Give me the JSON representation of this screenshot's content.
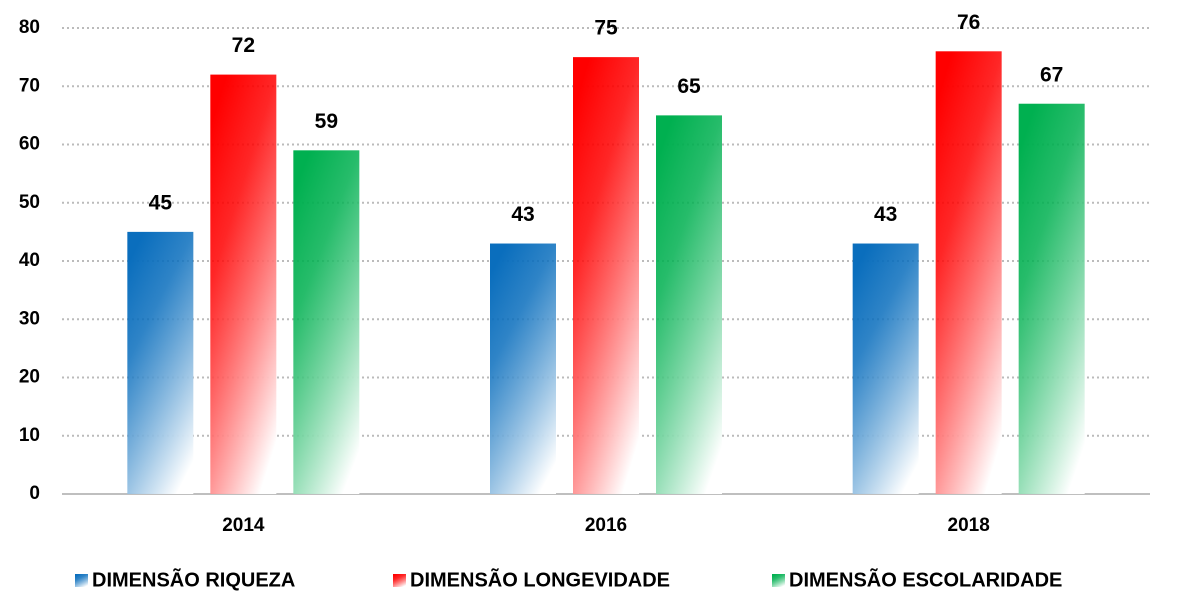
{
  "chart_data": {
    "type": "bar",
    "categories": [
      "2014",
      "2016",
      "2018"
    ],
    "series": [
      {
        "name": "DIMENSÃO RIQUEZA",
        "color": "#0a6ebd",
        "values": [
          45,
          43,
          43
        ]
      },
      {
        "name": "DIMENSÃO LONGEVIDADE",
        "color": "#ff0000",
        "values": [
          72,
          75,
          76
        ]
      },
      {
        "name": "DIMENSÃO ESCOLARIDADE",
        "color": "#00b050",
        "values": [
          59,
          65,
          67
        ]
      }
    ],
    "ylim": [
      0,
      80
    ],
    "yticks": [
      0,
      10,
      20,
      30,
      40,
      50,
      60,
      70,
      80
    ],
    "grid": true,
    "legend": "bottom"
  }
}
